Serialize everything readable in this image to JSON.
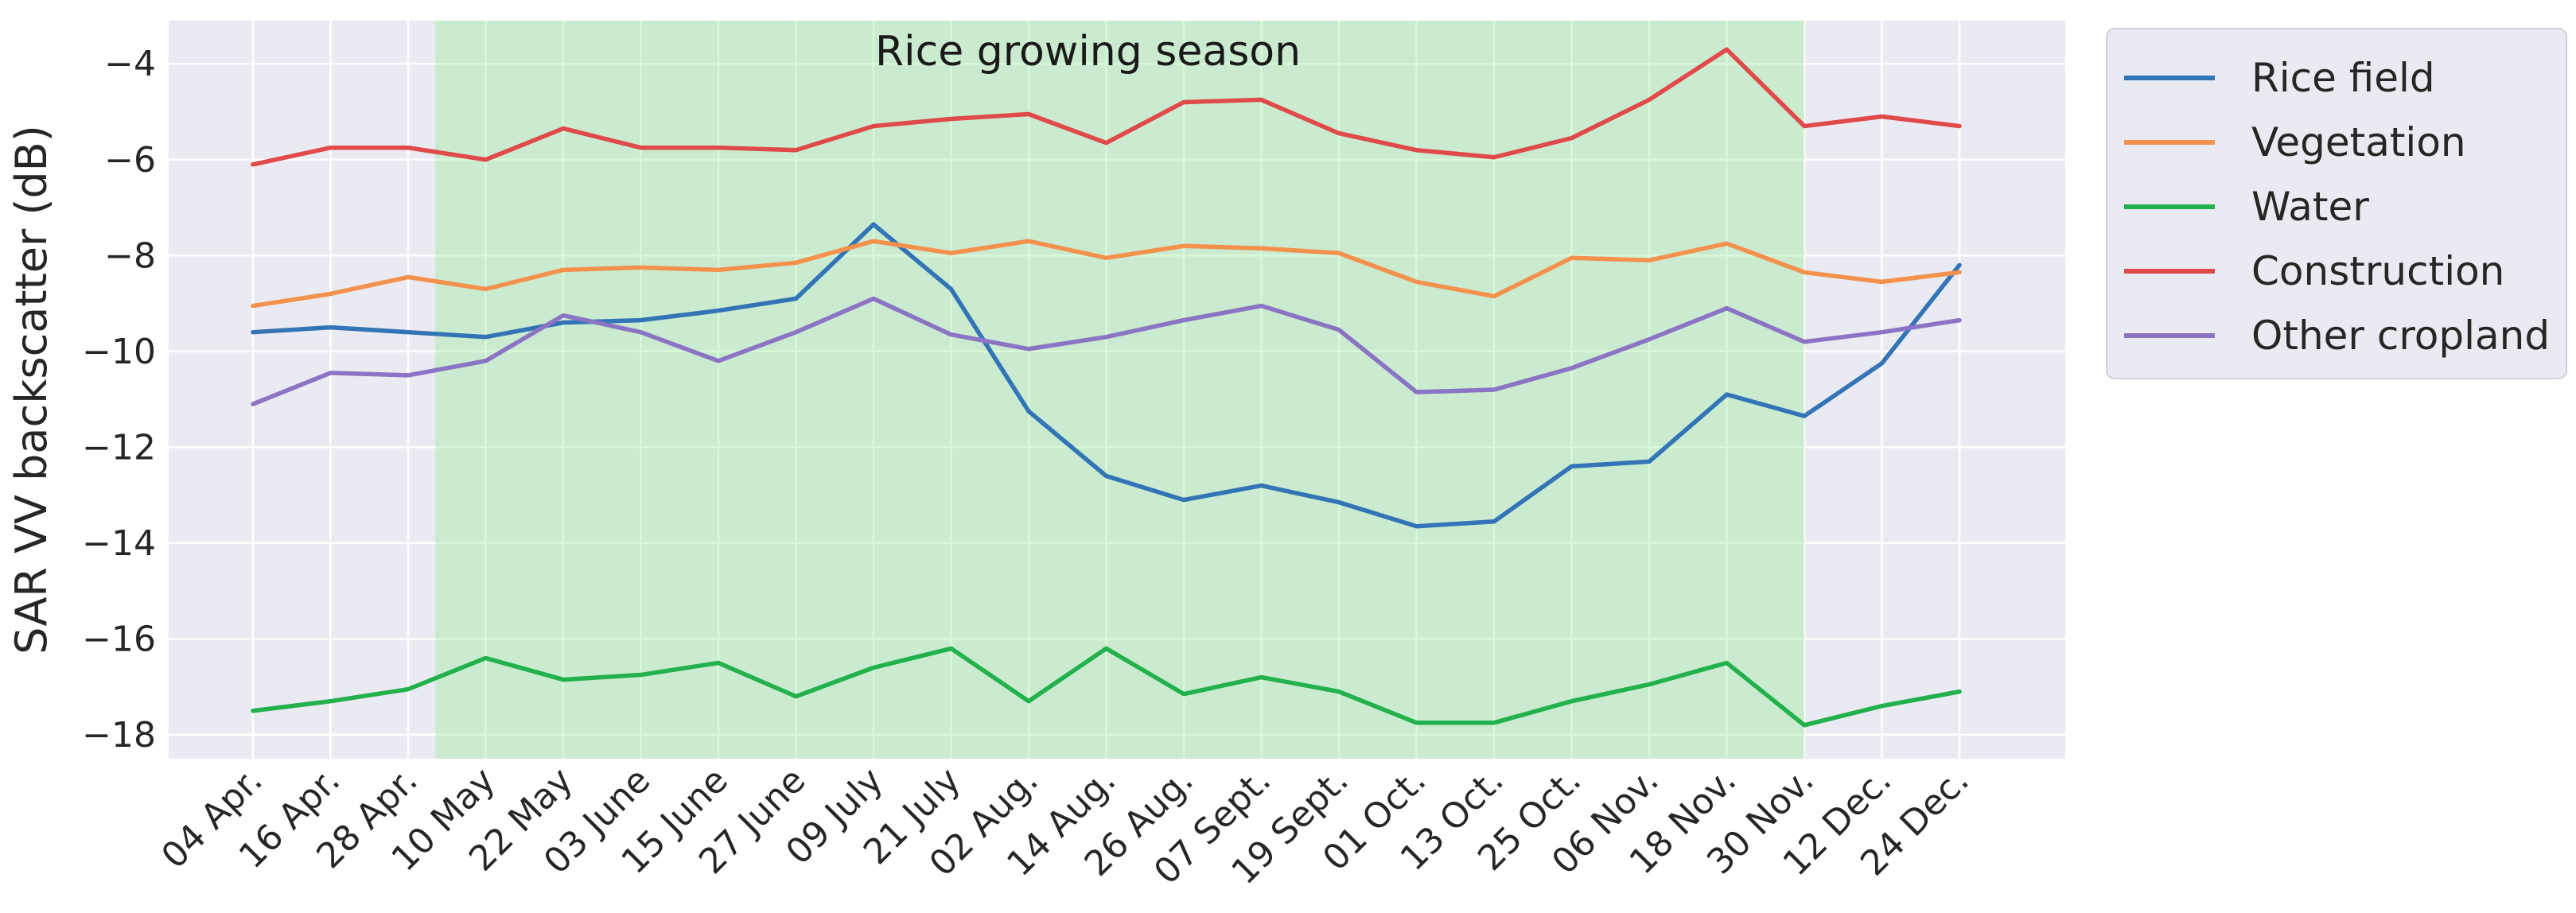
{
  "chart_data": {
    "type": "line",
    "title": "",
    "xlabel": "",
    "ylabel": "SAR VV backscatter (dB)",
    "ylim": [
      -18.5,
      -3.1
    ],
    "yticks": [
      -18,
      -16,
      -14,
      -12,
      -10,
      -8,
      -6,
      -4
    ],
    "grid": true,
    "legend_position": "outside-top-right",
    "categories": [
      "04 Apr.",
      "16 Apr.",
      "28 Apr.",
      "10 May",
      "22 May",
      "03 June",
      "15 June",
      "27 June",
      "09 July",
      "21 July",
      "02 Aug.",
      "14 Aug.",
      "26 Aug.",
      "07 Sept.",
      "19 Sept.",
      "01 Oct.",
      "13 Oct.",
      "25 Oct.",
      "06 Nov.",
      "18 Nov.",
      "30 Nov.",
      "12 Dec.",
      "24 Dec."
    ],
    "shaded_region": {
      "label": "Rice growing season",
      "from_index": 2.35,
      "to_index": 20,
      "color": "#90ee90"
    },
    "series": [
      {
        "name": "Rice field",
        "color": "#3274b6",
        "values": [
          -9.6,
          -9.5,
          -9.6,
          -9.7,
          -9.4,
          -9.35,
          -9.15,
          -8.9,
          -7.35,
          -8.7,
          -11.25,
          -12.6,
          -13.1,
          -12.8,
          -13.15,
          -13.65,
          -13.55,
          -12.4,
          -12.3,
          -10.9,
          -11.35,
          -10.25,
          -8.2
        ]
      },
      {
        "name": "Vegetation",
        "color": "#f4914d",
        "values": [
          -9.05,
          -8.8,
          -8.45,
          -8.7,
          -8.3,
          -8.25,
          -8.3,
          -8.15,
          -7.7,
          -7.95,
          -7.7,
          -8.05,
          -7.8,
          -7.85,
          -7.95,
          -8.55,
          -8.85,
          -8.05,
          -8.1,
          -7.75,
          -8.35,
          -8.55,
          -8.35
        ]
      },
      {
        "name": "Water",
        "color": "#22b14c",
        "values": [
          -17.5,
          -17.3,
          -17.05,
          -16.4,
          -16.85,
          -16.75,
          -16.5,
          -17.2,
          -16.6,
          -16.2,
          -17.3,
          -16.2,
          -17.15,
          -16.8,
          -17.1,
          -17.75,
          -17.75,
          -17.3,
          -16.95,
          -16.5,
          -17.8,
          -17.4,
          -17.1
        ]
      },
      {
        "name": "Construction",
        "color": "#e04a4a",
        "values": [
          -6.1,
          -5.75,
          -5.75,
          -6.0,
          -5.35,
          -5.75,
          -5.75,
          -5.8,
          -5.3,
          -5.15,
          -5.05,
          -5.65,
          -4.8,
          -4.75,
          -5.45,
          -5.8,
          -5.95,
          -5.55,
          -4.75,
          -3.7,
          -5.3,
          -5.1,
          -5.3
        ]
      },
      {
        "name": "Other cropland",
        "color": "#8b74c4",
        "values": [
          -11.1,
          -10.45,
          -10.5,
          -10.2,
          -9.25,
          -9.6,
          -10.2,
          -9.6,
          -8.9,
          -9.65,
          -9.95,
          -9.7,
          -9.35,
          -9.05,
          -9.55,
          -10.85,
          -10.8,
          -10.35,
          -9.75,
          -9.1,
          -9.8,
          -9.6,
          -9.35
        ]
      }
    ]
  },
  "colors": {
    "plot_background": "#eaeaf2",
    "grid": "#ffffff",
    "season_shade": "#90ee90"
  }
}
